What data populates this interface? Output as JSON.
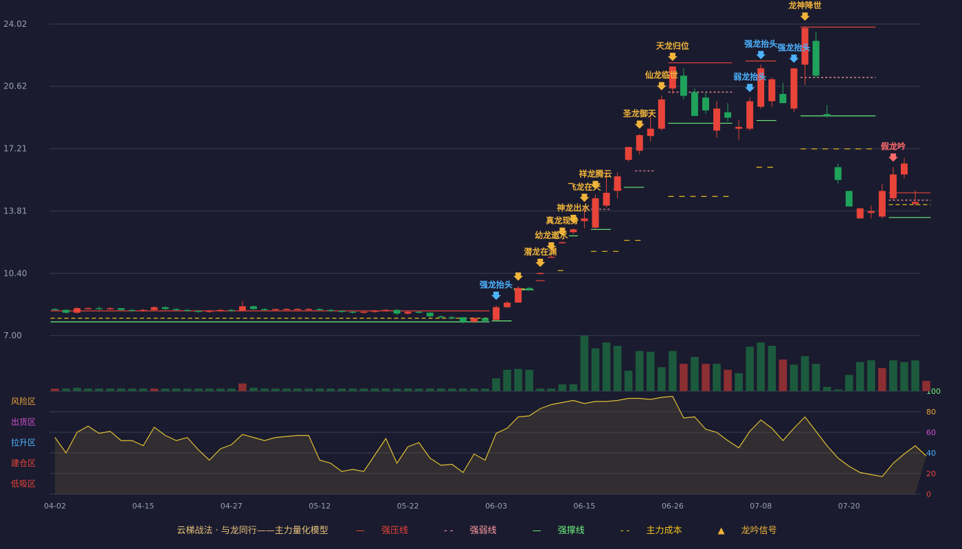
{
  "colors": {
    "background": "#1a1b2e",
    "grid": "#3a3c52",
    "up": "#e8443a",
    "down": "#1fa35b",
    "volUp": "#8c2f32",
    "volDown": "#1c5a3d",
    "axisText": "#9aa0b4",
    "gold": "#f0b43a",
    "blue": "#4db3ff",
    "indicator": "#e2c233"
  },
  "chart_data": {
    "type": "candlestick",
    "price_ticks": [
      "24.02",
      "20.62",
      "17.21",
      "13.81",
      "10.40",
      "7.00"
    ],
    "price_tick_values": [
      24.02,
      20.62,
      17.21,
      13.81,
      10.4,
      7.0
    ],
    "x_ticks": [
      "04-02",
      "04-15",
      "04-27",
      "05-12",
      "05-22",
      "06-03",
      "06-15",
      "06-26",
      "07-08",
      "07-20"
    ],
    "x_tick_index": [
      0,
      8,
      16,
      24,
      32,
      40,
      48,
      56,
      64,
      72
    ],
    "candles": [
      [
        8.45,
        8.5,
        8.4,
        8.4
      ],
      [
        8.4,
        8.45,
        8.2,
        8.25
      ],
      [
        8.25,
        8.55,
        8.2,
        8.5
      ],
      [
        8.5,
        8.55,
        8.45,
        8.5
      ],
      [
        8.5,
        8.6,
        8.4,
        8.45
      ],
      [
        8.45,
        8.55,
        8.4,
        8.5
      ],
      [
        8.5,
        8.5,
        8.35,
        8.4
      ],
      [
        8.4,
        8.45,
        8.3,
        8.35
      ],
      [
        8.35,
        8.45,
        8.3,
        8.4
      ],
      [
        8.4,
        8.6,
        8.35,
        8.55
      ],
      [
        8.55,
        8.6,
        8.4,
        8.45
      ],
      [
        8.45,
        8.5,
        8.35,
        8.4
      ],
      [
        8.4,
        8.45,
        8.3,
        8.35
      ],
      [
        8.35,
        8.4,
        8.25,
        8.3
      ],
      [
        8.3,
        8.4,
        8.25,
        8.35
      ],
      [
        8.35,
        8.45,
        8.3,
        8.4
      ],
      [
        8.4,
        8.45,
        8.3,
        8.35
      ],
      [
        8.35,
        8.9,
        8.35,
        8.6
      ],
      [
        8.6,
        8.65,
        8.4,
        8.45
      ],
      [
        8.45,
        8.5,
        8.35,
        8.4
      ],
      [
        8.4,
        8.45,
        8.35,
        8.45
      ],
      [
        8.45,
        8.5,
        8.4,
        8.45
      ],
      [
        8.45,
        8.5,
        8.4,
        8.45
      ],
      [
        8.45,
        8.5,
        8.4,
        8.45
      ],
      [
        8.45,
        8.5,
        8.35,
        8.4
      ],
      [
        8.4,
        8.45,
        8.3,
        8.35
      ],
      [
        8.35,
        8.4,
        8.25,
        8.3
      ],
      [
        8.3,
        8.35,
        8.2,
        8.25
      ],
      [
        8.25,
        8.3,
        8.2,
        8.3
      ],
      [
        8.3,
        8.4,
        8.25,
        8.35
      ],
      [
        8.35,
        8.45,
        8.3,
        8.4
      ],
      [
        8.4,
        8.45,
        8.1,
        8.2
      ],
      [
        8.2,
        8.35,
        8.15,
        8.3
      ],
      [
        8.3,
        8.35,
        8.2,
        8.25
      ],
      [
        8.25,
        8.3,
        8.0,
        8.05
      ],
      [
        8.05,
        8.1,
        7.95,
        8.0
      ],
      [
        8.0,
        8.1,
        7.9,
        7.95
      ],
      [
        8.0,
        8.0,
        7.65,
        7.75
      ],
      [
        7.75,
        8.0,
        7.7,
        7.95
      ],
      [
        7.95,
        8.0,
        7.75,
        7.8
      ],
      [
        7.85,
        8.65,
        7.85,
        8.55
      ],
      [
        8.55,
        8.9,
        8.5,
        8.8
      ],
      [
        8.8,
        9.7,
        8.8,
        9.6
      ],
      [
        9.6,
        9.65,
        9.45,
        9.5
      ],
      [
        10.4,
        10.45,
        10.35,
        10.42
      ],
      [
        11.3,
        11.35,
        11.25,
        11.3
      ],
      [
        12.1,
        12.15,
        12.05,
        12.1
      ],
      [
        12.65,
        12.85,
        12.55,
        12.8
      ],
      [
        13.25,
        14.0,
        12.85,
        13.4
      ],
      [
        12.9,
        14.7,
        12.8,
        14.5
      ],
      [
        14.1,
        16.0,
        14.0,
        14.8
      ],
      [
        14.9,
        15.9,
        14.5,
        15.7
      ],
      [
        16.6,
        17.3,
        16.5,
        17.3
      ],
      [
        17.1,
        18.0,
        16.9,
        17.95
      ],
      [
        17.9,
        19.2,
        17.6,
        18.3
      ],
      [
        18.3,
        20.1,
        18.2,
        19.9
      ],
      [
        20.5,
        21.7,
        20.2,
        21.7
      ],
      [
        21.2,
        21.6,
        19.9,
        20.1
      ],
      [
        20.3,
        20.5,
        19.1,
        19.0
      ],
      [
        20.0,
        20.3,
        19.1,
        19.3
      ],
      [
        18.2,
        19.8,
        17.8,
        19.4
      ],
      [
        19.2,
        19.7,
        18.7,
        18.9
      ],
      [
        18.3,
        18.8,
        17.7,
        18.4
      ],
      [
        18.3,
        20.0,
        18.2,
        19.8
      ],
      [
        19.5,
        21.8,
        19.4,
        21.6
      ],
      [
        19.8,
        21.1,
        19.5,
        21.0
      ],
      [
        20.2,
        20.8,
        19.7,
        19.7
      ],
      [
        19.4,
        21.6,
        19.2,
        21.6
      ],
      [
        21.8,
        23.9,
        20.7,
        23.8
      ],
      [
        23.1,
        23.6,
        21.1,
        21.2
      ],
      [
        19.1,
        19.6,
        18.9,
        19.0
      ],
      [
        16.2,
        16.4,
        15.3,
        15.5
      ],
      [
        14.9,
        14.9,
        14.05,
        14.05
      ],
      [
        13.4,
        13.95,
        13.4,
        13.95
      ],
      [
        13.7,
        14.1,
        13.4,
        13.8
      ],
      [
        13.5,
        15.3,
        13.4,
        14.9
      ],
      [
        14.5,
        16.2,
        14.4,
        15.8
      ],
      [
        15.8,
        16.7,
        15.6,
        16.4
      ],
      [
        14.2,
        14.95,
        14.1,
        14.3
      ]
    ],
    "volume": [
      3,
      3,
      4,
      3,
      3,
      3,
      3,
      3,
      3,
      3,
      3,
      3,
      3,
      3,
      3,
      3,
      3,
      9,
      4,
      3,
      3,
      3,
      3,
      3,
      3,
      3,
      3,
      3,
      3,
      3,
      3,
      3,
      3,
      3,
      3,
      3,
      3,
      3,
      3,
      3,
      15,
      25,
      26,
      25,
      3,
      3,
      8,
      8,
      65,
      50,
      57,
      53,
      24,
      47,
      46,
      28,
      47,
      32,
      40,
      32,
      32,
      25,
      21,
      52,
      57,
      53,
      37,
      31,
      41,
      32,
      5,
      2,
      19,
      34,
      36,
      27,
      36,
      34,
      36,
      12
    ],
    "volume_dir": [
      "u",
      "d",
      "d",
      "d",
      "d",
      "d",
      "d",
      "d",
      "d",
      "u",
      "d",
      "d",
      "d",
      "d",
      "d",
      "d",
      "d",
      "u",
      "d",
      "d",
      "d",
      "d",
      "d",
      "d",
      "d",
      "d",
      "d",
      "d",
      "d",
      "d",
      "d",
      "d",
      "d",
      "d",
      "d",
      "d",
      "d",
      "d",
      "d",
      "d",
      "d",
      "d",
      "d",
      "d",
      "d",
      "d",
      "d",
      "d",
      "d",
      "d",
      "d",
      "d",
      "d",
      "d",
      "d",
      "d",
      "d",
      "u",
      "d",
      "u",
      "d",
      "u",
      "d",
      "d",
      "d",
      "d",
      "u",
      "d",
      "d",
      "d",
      "d",
      "d",
      "d",
      "d",
      "d",
      "u",
      "d",
      "d",
      "d",
      "u"
    ],
    "indicator": [
      55,
      40,
      60,
      66,
      59,
      61,
      52,
      52,
      47,
      65,
      57,
      52,
      55,
      43,
      33,
      44,
      48,
      58,
      55,
      52,
      55,
      56,
      57,
      57,
      33,
      30,
      22,
      24,
      22,
      38,
      54,
      30,
      46,
      50,
      35,
      28,
      29,
      21,
      39,
      33,
      59,
      64,
      75,
      76,
      83,
      87,
      89,
      91,
      88,
      90,
      90,
      91,
      93,
      93,
      92,
      94,
      95,
      74,
      75,
      63,
      60,
      52,
      45,
      61,
      72,
      64,
      52,
      64,
      75,
      61,
      47,
      35,
      27,
      21,
      19,
      17,
      30,
      39,
      47,
      37
    ],
    "indicator_axis": [
      "0",
      "20",
      "40",
      "60",
      "80",
      "100"
    ],
    "zones": [
      "风险区",
      "出货区",
      "拉升区",
      "建仓区",
      "低吸区"
    ]
  },
  "signals": [
    {
      "i": 40,
      "label": "强龙抬头",
      "color": "blue"
    },
    {
      "i": 42,
      "label": "",
      "color": "gold"
    },
    {
      "i": 44,
      "label": "潜龙在渊",
      "color": "gold"
    },
    {
      "i": 45,
      "label": "幼龙遨水",
      "color": "gold"
    },
    {
      "i": 46,
      "label": "真龙现身",
      "color": "gold"
    },
    {
      "i": 47,
      "label": "神龙出水",
      "color": "gold"
    },
    {
      "i": 48,
      "label": "飞龙在天",
      "color": "gold"
    },
    {
      "i": 49,
      "label": "祥龙腾云",
      "color": "gold"
    },
    {
      "i": 53,
      "label": "圣龙御天",
      "color": "gold"
    },
    {
      "i": 55,
      "label": "仙龙临世",
      "color": "gold"
    },
    {
      "i": 56,
      "label": "天龙归位",
      "color": "gold"
    },
    {
      "i": 63,
      "label": "弱龙抬头",
      "color": "blue"
    },
    {
      "i": 64,
      "label": "强龙抬头",
      "color": "blue"
    },
    {
      "i": 67,
      "label": "强龙抬头",
      "color": "blue"
    },
    {
      "i": 68,
      "label": "龙神降世",
      "color": "gold"
    },
    {
      "i": 76,
      "label": "假龙吟",
      "color": "red"
    }
  ],
  "legend": {
    "title": "云梯战法 · 与龙同行——主力量化模型",
    "items": [
      {
        "label": "强压线",
        "color": "#e8443a",
        "style": "solid"
      },
      {
        "label": "强弱线",
        "color": "#ff9aa0",
        "style": "dash"
      },
      {
        "label": "强撑线",
        "color": "#6cf07a",
        "style": "solid"
      },
      {
        "label": "主力成本",
        "color": "#f0c020",
        "style": "dash"
      },
      {
        "label": "龙吟信号",
        "color": "#f0b43a",
        "style": "tri"
      }
    ]
  }
}
